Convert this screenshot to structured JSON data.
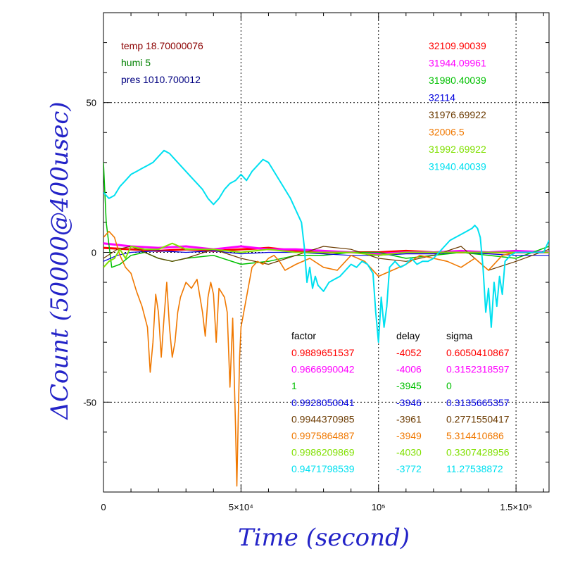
{
  "chart_data": {
    "type": "line",
    "xlabel": "Time (second)",
    "ylabel": "ΔCount (50000@400usec)",
    "xlim": [
      0,
      162000
    ],
    "ylim": [
      -80,
      80
    ],
    "xticks": [
      {
        "value": 0,
        "label": "0"
      },
      {
        "value": 50000,
        "label": "5×10⁴"
      },
      {
        "value": 100000,
        "label": "10⁵"
      },
      {
        "value": 150000,
        "label": "1.5×10⁵"
      }
    ],
    "yticks": [
      {
        "value": 50,
        "label": "50"
      },
      {
        "value": 0,
        "label": "0"
      },
      {
        "value": -50,
        "label": "-50"
      }
    ],
    "grid": "dotted at major ticks",
    "env": [
      {
        "label": "temp 18.70000076",
        "color": "#8b0000"
      },
      {
        "label": "humi 5",
        "color": "#008000"
      },
      {
        "label": "pres 1010.700012",
        "color": "#000080"
      }
    ],
    "legend": {
      "headers": [
        "factor",
        "delay",
        "sigma"
      ]
    },
    "series": [
      {
        "name": "32109.90039",
        "color": "#ff0000",
        "factor": "0.9889651537",
        "delay": "-4052",
        "sigma": "0.6050410867",
        "x": [
          0,
          10000,
          20000,
          30000,
          40000,
          50000,
          60000,
          70000,
          80000,
          90000,
          100000,
          110000,
          120000,
          130000,
          140000,
          150000,
          162000
        ],
        "y": [
          1.5,
          1,
          0.5,
          1,
          0.5,
          1,
          1.5,
          0.5,
          0,
          0,
          0,
          0.5,
          0,
          0,
          0,
          0,
          0
        ]
      },
      {
        "name": "31944.09961",
        "color": "#ff00ff",
        "factor": "0.9666990042",
        "delay": "-4006",
        "sigma": "0.3152318597",
        "x": [
          0,
          10000,
          20000,
          30000,
          40000,
          50000,
          60000,
          70000,
          80000,
          90000,
          100000,
          110000,
          120000,
          130000,
          140000,
          150000,
          162000
        ],
        "y": [
          3,
          2,
          1.5,
          2,
          1,
          2,
          1,
          1,
          0.5,
          0,
          -0.5,
          0,
          0,
          0.5,
          0,
          0.5,
          0
        ]
      },
      {
        "name": "31980.40039",
        "color": "#00c000",
        "factor": "1",
        "delay": "-3945",
        "sigma": "0",
        "x": [
          0,
          1000,
          3000,
          6000,
          10000,
          15000,
          20000,
          25000,
          30000,
          40000,
          50000,
          60000,
          70000,
          80000,
          90000,
          100000,
          110000,
          120000,
          130000,
          140000,
          150000,
          162000
        ],
        "y": [
          30,
          10,
          -5,
          -4,
          -1,
          0,
          -2,
          -3,
          -2,
          -1,
          -4,
          -3,
          -1,
          -1,
          0,
          0,
          -2,
          -1,
          0,
          -1,
          -2,
          2
        ]
      },
      {
        "name": "32114",
        "color": "#0000dd",
        "factor": "0.9928050041",
        "delay": "-3946",
        "sigma": "0.3135665357",
        "x": [
          0,
          5000,
          10000,
          20000,
          30000,
          40000,
          50000,
          60000,
          70000,
          80000,
          90000,
          100000,
          110000,
          120000,
          130000,
          140000,
          150000,
          162000
        ],
        "y": [
          -3,
          -1,
          0,
          0.5,
          0,
          0.5,
          -0.5,
          0,
          0,
          -0.5,
          -1,
          -1,
          -0.5,
          -0.5,
          0,
          -0.5,
          -1,
          -1
        ]
      },
      {
        "name": "31976.69922",
        "color": "#6b3a00",
        "factor": "0.9944370985",
        "delay": "-3961",
        "sigma": "0.2771550417",
        "x": [
          0,
          5000,
          10000,
          15000,
          20000,
          25000,
          30000,
          40000,
          50000,
          60000,
          70000,
          80000,
          90000,
          100000,
          110000,
          120000,
          130000,
          140000,
          150000,
          162000
        ],
        "y": [
          -2,
          1,
          2,
          0,
          -2,
          -3,
          -2,
          1,
          -2,
          -4,
          -1,
          2,
          1,
          -2,
          -3,
          -1,
          2,
          -6,
          -3,
          1
        ]
      },
      {
        "name": "32006.5",
        "color": "#f07800",
        "factor": "0.9975864887",
        "delay": "-3949",
        "sigma": "5.314410686",
        "x": [
          0,
          2000,
          4000,
          6000,
          8000,
          10000,
          12000,
          14000,
          16000,
          17000,
          18000,
          19000,
          20000,
          21000,
          22000,
          23000,
          24000,
          25000,
          26000,
          27000,
          28000,
          30000,
          32000,
          34000,
          36000,
          37000,
          38000,
          39000,
          40000,
          41000,
          42000,
          44000,
          45000,
          46000,
          47000,
          48000,
          48500,
          49000,
          49500,
          50000,
          51000,
          52000,
          54000,
          56000,
          58000,
          60000,
          62000,
          64000,
          66000,
          70000,
          75000,
          80000,
          85000,
          90000,
          95000,
          100000,
          105000,
          110000,
          115000,
          120000,
          125000,
          130000,
          135000,
          140000,
          145000,
          150000,
          162000
        ],
        "y": [
          5,
          7,
          5,
          -1,
          -5,
          -7,
          -13,
          -18,
          -25,
          -40,
          -30,
          -14,
          -20,
          -35,
          -22,
          -10,
          -25,
          -35,
          -30,
          -20,
          -15,
          -10,
          -12,
          -9,
          -20,
          -28,
          -15,
          -10,
          -14,
          -30,
          -12,
          -15,
          -20,
          -45,
          -22,
          -58,
          -78,
          -55,
          -35,
          -25,
          -20,
          -15,
          -5,
          -3,
          -4,
          -2,
          -1,
          -3,
          -6,
          -4,
          -2,
          -5,
          -6,
          -1,
          -3,
          -8,
          -6,
          -4,
          -1,
          -2,
          -3,
          -5,
          -2,
          -6,
          -1,
          0,
          0
        ]
      },
      {
        "name": "31992.69922",
        "color": "#80e000",
        "factor": "0.9986209869",
        "delay": "-4030",
        "sigma": "0.3307428956",
        "x": [
          0,
          2000,
          4000,
          6000,
          8000,
          10000,
          15000,
          20000,
          25000,
          30000,
          40000,
          50000,
          60000,
          70000,
          80000,
          90000,
          100000,
          110000,
          120000,
          130000,
          140000,
          150000,
          162000
        ],
        "y": [
          -5,
          -3,
          -2,
          1,
          -2,
          2,
          1,
          1,
          3,
          1,
          1,
          0,
          1,
          0,
          0,
          0,
          -1,
          0,
          0,
          0,
          0,
          0,
          0
        ]
      },
      {
        "name": "31940.40039",
        "color": "#00e0f0",
        "factor": "0.9471798539",
        "delay": "-3772",
        "sigma": "11.27538872",
        "x": [
          0,
          2000,
          4000,
          6000,
          8000,
          10000,
          12000,
          14000,
          16000,
          18000,
          20000,
          22000,
          24000,
          26000,
          28000,
          30000,
          32000,
          34000,
          36000,
          38000,
          40000,
          42000,
          44000,
          46000,
          48000,
          50000,
          52000,
          54000,
          56000,
          58000,
          60000,
          62000,
          64000,
          66000,
          68000,
          70000,
          72000,
          73000,
          74000,
          75000,
          76000,
          77000,
          78000,
          80000,
          82000,
          84000,
          86000,
          88000,
          90000,
          92000,
          94000,
          96000,
          98000,
          99000,
          100000,
          101000,
          102000,
          103000,
          104000,
          106000,
          108000,
          110000,
          112000,
          114000,
          116000,
          118000,
          120000,
          122000,
          124000,
          126000,
          128000,
          130000,
          132000,
          134000,
          135000,
          136000,
          137000,
          138000,
          139000,
          140000,
          141000,
          142000,
          143000,
          144000,
          145000,
          146000,
          148000,
          150000,
          152000,
          154000,
          156000,
          158000,
          160000,
          162000
        ],
        "y": [
          20,
          18,
          19,
          22,
          24,
          26,
          27,
          28,
          29,
          30,
          32,
          34,
          33,
          31,
          29,
          27,
          25,
          23,
          21,
          18,
          16,
          18,
          21,
          23,
          24,
          26,
          24,
          27,
          29,
          31,
          30,
          27,
          24,
          21,
          18,
          14,
          10,
          2,
          -10,
          -5,
          -12,
          -8,
          -11,
          -13,
          -10,
          -9,
          -8,
          -6,
          -4,
          -5,
          -3,
          -4,
          -7,
          -20,
          -30,
          -15,
          -25,
          -18,
          -5,
          -3,
          -5,
          -4,
          -2,
          -4,
          -3,
          -3,
          -2,
          0,
          2,
          4,
          5,
          6,
          7,
          8,
          9,
          8,
          5,
          -5,
          -20,
          -12,
          -25,
          -10,
          -18,
          -8,
          -14,
          -3,
          -1,
          0,
          0,
          0,
          0,
          0,
          0,
          4
        ]
      }
    ]
  }
}
